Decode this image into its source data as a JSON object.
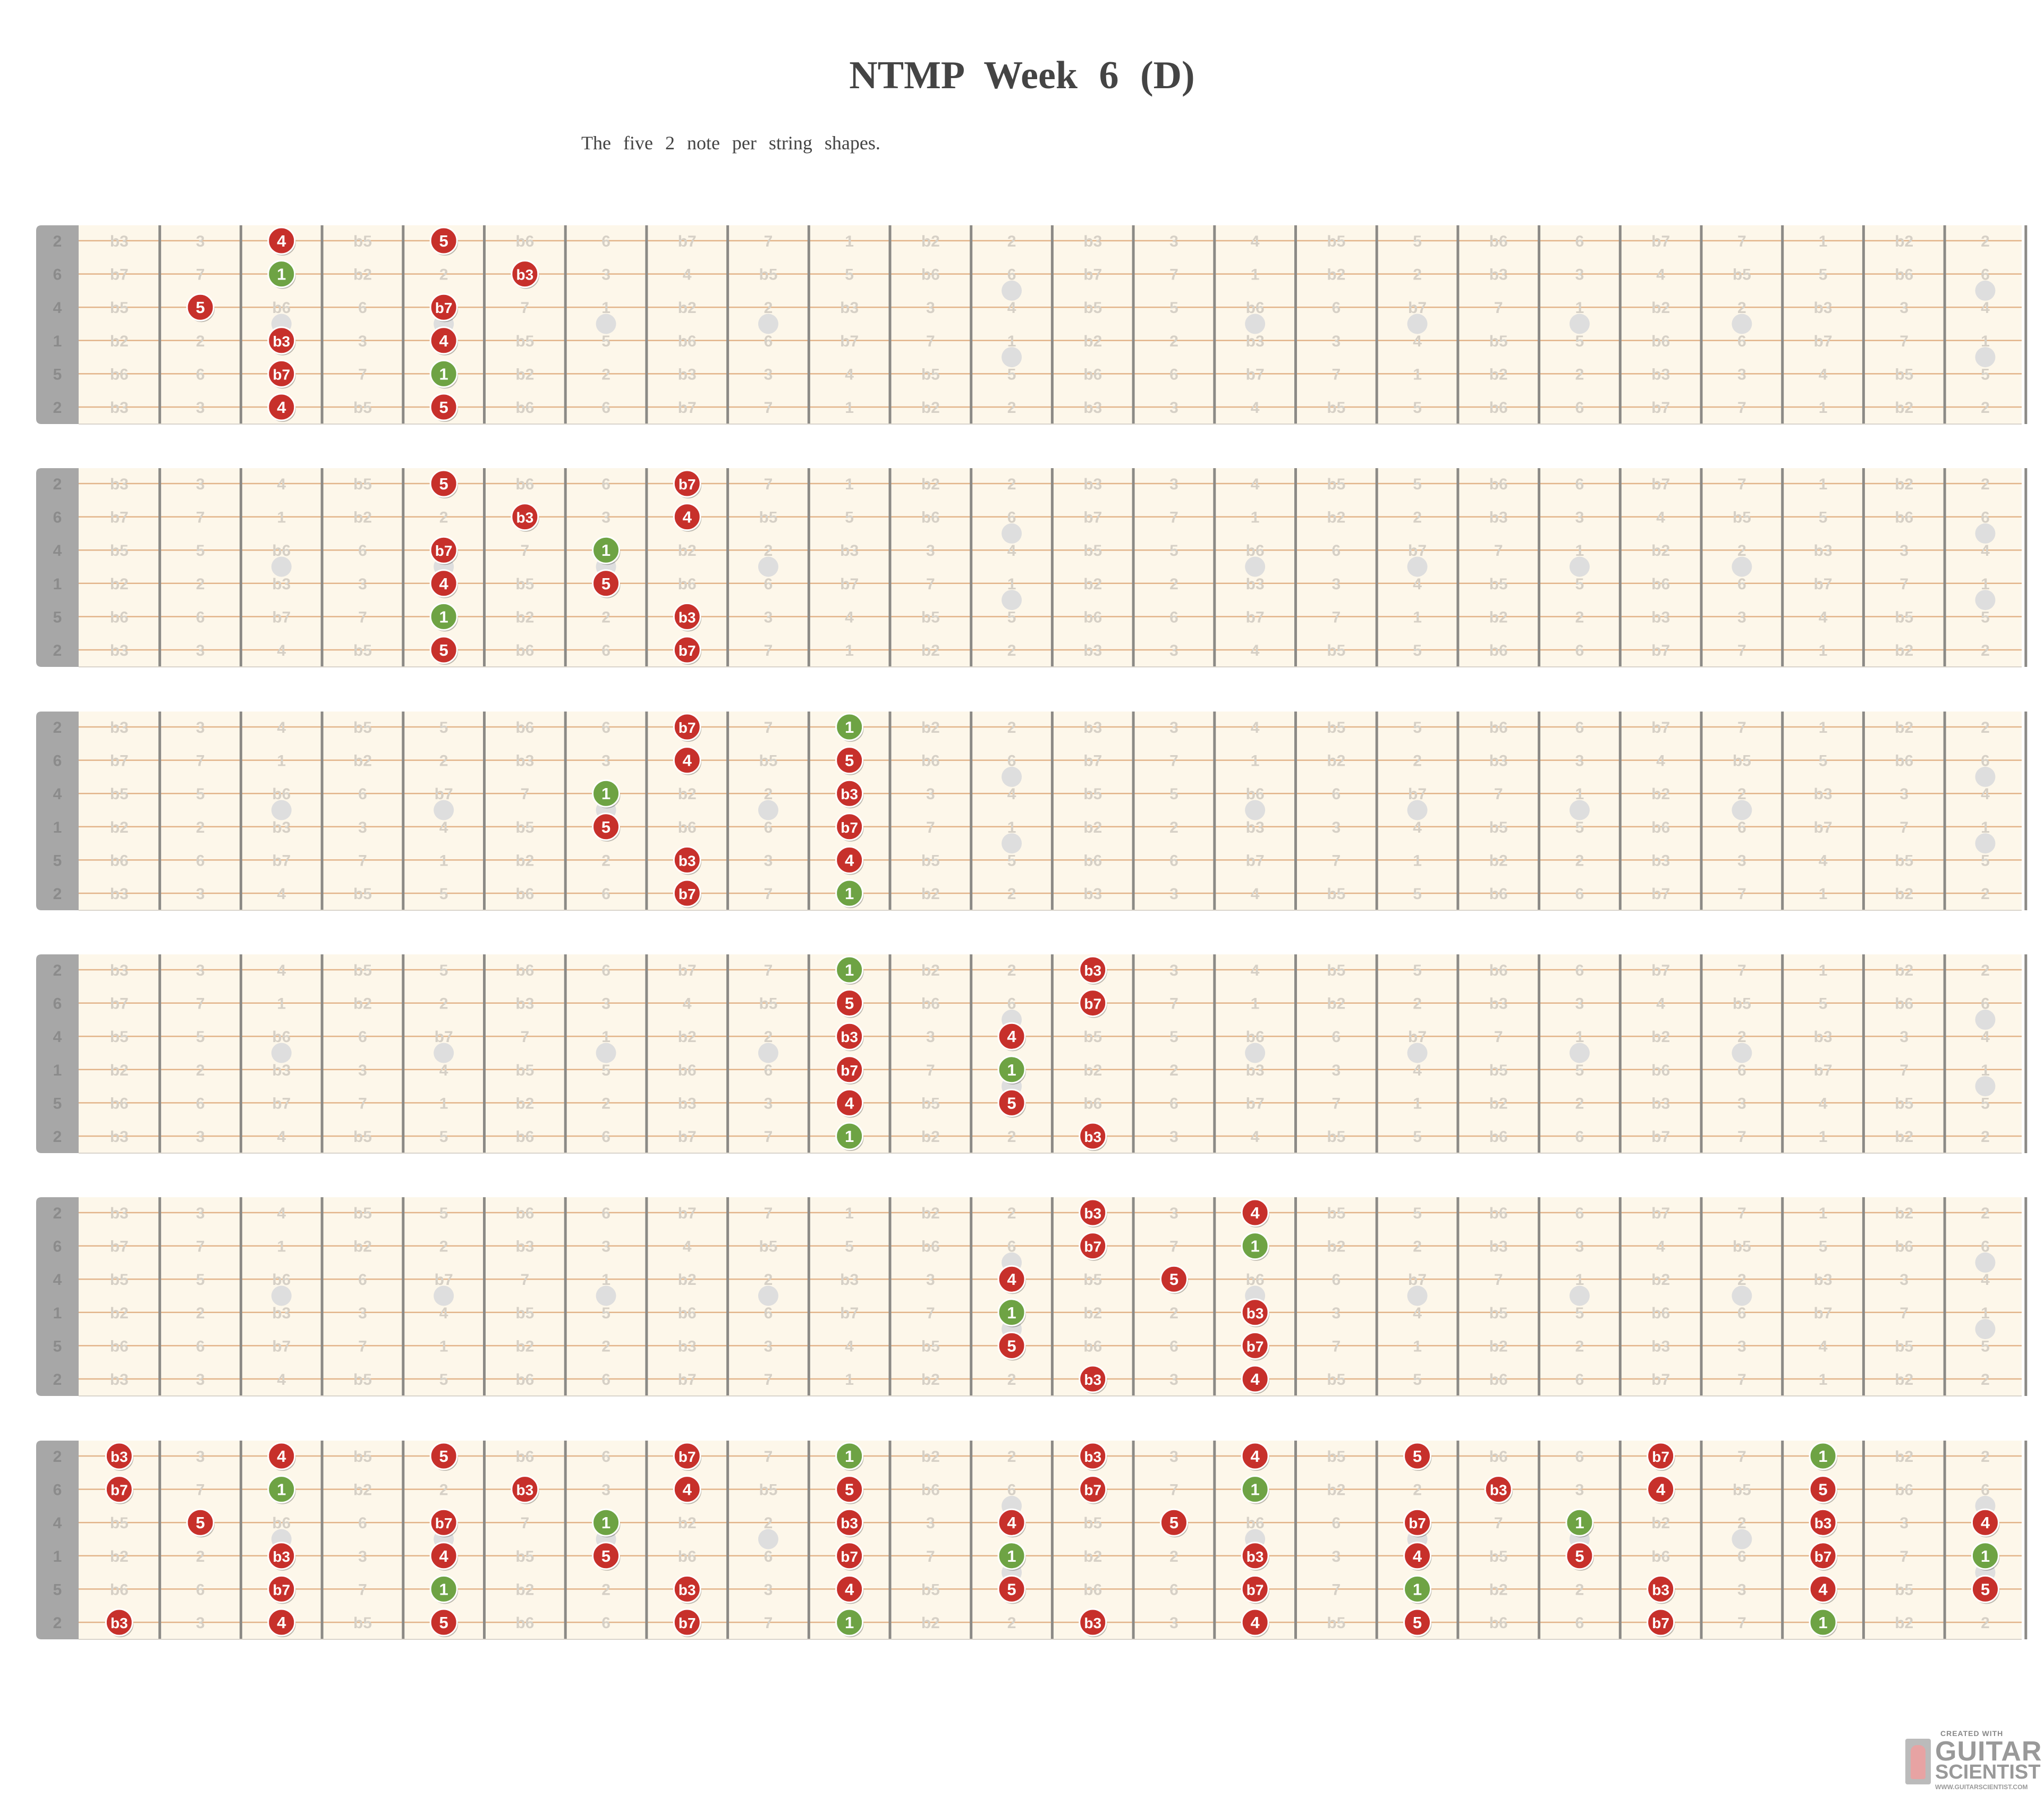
{
  "title": "NTMP   Week    6  (D)",
  "subtitle": "The  five  2  note   per  string    shapes.",
  "logo": {
    "created_with": "CREATED WITH",
    "line1": "GUITAR",
    "line2": "SCIENTIST",
    "url": "WWW.GUITARSCIENTIST.COM"
  },
  "colors": {
    "root": "#6ea344",
    "note": "#c7302b",
    "board_bg": "#fdf7ea",
    "string": "#e2b48a",
    "fret": "#8c8a86",
    "nut": "#a7a7a7",
    "ghost_label": "#d6d0c6",
    "open_label": "#8b8b8b",
    "inlay": "#dedede"
  },
  "fretboard": {
    "open_strings": [
      "2",
      "6",
      "4",
      "1",
      "5",
      "2"
    ],
    "fret_labels": [
      [
        "b3",
        "3",
        "4",
        "b5",
        "5",
        "b6",
        "6",
        "b7",
        "7",
        "1",
        "b2",
        "2",
        "b3",
        "3",
        "4",
        "b5",
        "5",
        "b6",
        "6",
        "b7",
        "7",
        "1",
        "b2",
        "2"
      ],
      [
        "b7",
        "7",
        "1",
        "b2",
        "2",
        "b3",
        "3",
        "4",
        "b5",
        "5",
        "b6",
        "6",
        "b7",
        "7",
        "1",
        "b2",
        "2",
        "b3",
        "3",
        "4",
        "b5",
        "5",
        "b6",
        "6"
      ],
      [
        "b5",
        "5",
        "b6",
        "6",
        "b7",
        "7",
        "1",
        "b2",
        "2",
        "b3",
        "3",
        "4",
        "b5",
        "5",
        "b6",
        "6",
        "b7",
        "7",
        "1",
        "b2",
        "2",
        "b3",
        "3",
        "4"
      ],
      [
        "b2",
        "2",
        "b3",
        "3",
        "4",
        "b5",
        "5",
        "b6",
        "6",
        "b7",
        "7",
        "1",
        "b2",
        "2",
        "b3",
        "3",
        "4",
        "b5",
        "5",
        "b6",
        "6",
        "b7",
        "7",
        "1"
      ],
      [
        "b6",
        "6",
        "b7",
        "7",
        "1",
        "b2",
        "2",
        "b3",
        "3",
        "4",
        "b5",
        "5",
        "b6",
        "6",
        "b7",
        "7",
        "1",
        "b2",
        "2",
        "b3",
        "3",
        "4",
        "b5",
        "5"
      ],
      [
        "b3",
        "3",
        "4",
        "b5",
        "5",
        "b6",
        "6",
        "b7",
        "7",
        "1",
        "b2",
        "2",
        "b3",
        "3",
        "4",
        "b5",
        "5",
        "b6",
        "6",
        "b7",
        "7",
        "1",
        "b2",
        "2"
      ]
    ],
    "single_dot_frets": [
      3,
      5,
      7,
      9,
      15,
      17,
      19,
      21
    ],
    "double_dot_frets": [
      12,
      24
    ]
  },
  "diagrams": [
    {
      "name": "shape-1",
      "notes": [
        {
          "s": 1,
          "f": 3,
          "l": "4"
        },
        {
          "s": 1,
          "f": 5,
          "l": "5"
        },
        {
          "s": 2,
          "f": 3,
          "l": "1"
        },
        {
          "s": 2,
          "f": 6,
          "l": "b3"
        },
        {
          "s": 3,
          "f": 2,
          "l": "5"
        },
        {
          "s": 3,
          "f": 5,
          "l": "b7"
        },
        {
          "s": 4,
          "f": 3,
          "l": "b3"
        },
        {
          "s": 4,
          "f": 5,
          "l": "4"
        },
        {
          "s": 5,
          "f": 3,
          "l": "b7"
        },
        {
          "s": 5,
          "f": 5,
          "l": "1"
        },
        {
          "s": 6,
          "f": 3,
          "l": "4"
        },
        {
          "s": 6,
          "f": 5,
          "l": "5"
        }
      ]
    },
    {
      "name": "shape-2",
      "notes": [
        {
          "s": 1,
          "f": 5,
          "l": "5"
        },
        {
          "s": 1,
          "f": 8,
          "l": "b7"
        },
        {
          "s": 2,
          "f": 6,
          "l": "b3"
        },
        {
          "s": 2,
          "f": 8,
          "l": "4"
        },
        {
          "s": 3,
          "f": 5,
          "l": "b7"
        },
        {
          "s": 3,
          "f": 7,
          "l": "1"
        },
        {
          "s": 4,
          "f": 5,
          "l": "4"
        },
        {
          "s": 4,
          "f": 7,
          "l": "5"
        },
        {
          "s": 5,
          "f": 5,
          "l": "1"
        },
        {
          "s": 5,
          "f": 8,
          "l": "b3"
        },
        {
          "s": 6,
          "f": 5,
          "l": "5"
        },
        {
          "s": 6,
          "f": 8,
          "l": "b7"
        }
      ]
    },
    {
      "name": "shape-3",
      "notes": [
        {
          "s": 1,
          "f": 8,
          "l": "b7"
        },
        {
          "s": 1,
          "f": 10,
          "l": "1"
        },
        {
          "s": 2,
          "f": 8,
          "l": "4"
        },
        {
          "s": 2,
          "f": 10,
          "l": "5"
        },
        {
          "s": 3,
          "f": 7,
          "l": "1"
        },
        {
          "s": 3,
          "f": 10,
          "l": "b3"
        },
        {
          "s": 4,
          "f": 7,
          "l": "5"
        },
        {
          "s": 4,
          "f": 10,
          "l": "b7"
        },
        {
          "s": 5,
          "f": 8,
          "l": "b3"
        },
        {
          "s": 5,
          "f": 10,
          "l": "4"
        },
        {
          "s": 6,
          "f": 8,
          "l": "b7"
        },
        {
          "s": 6,
          "f": 10,
          "l": "1"
        }
      ]
    },
    {
      "name": "shape-4",
      "notes": [
        {
          "s": 1,
          "f": 10,
          "l": "1"
        },
        {
          "s": 1,
          "f": 13,
          "l": "b3"
        },
        {
          "s": 2,
          "f": 10,
          "l": "5"
        },
        {
          "s": 2,
          "f": 13,
          "l": "b7"
        },
        {
          "s": 3,
          "f": 10,
          "l": "b3"
        },
        {
          "s": 3,
          "f": 12,
          "l": "4"
        },
        {
          "s": 4,
          "f": 10,
          "l": "b7"
        },
        {
          "s": 4,
          "f": 12,
          "l": "1"
        },
        {
          "s": 5,
          "f": 10,
          "l": "4"
        },
        {
          "s": 5,
          "f": 12,
          "l": "5"
        },
        {
          "s": 6,
          "f": 10,
          "l": "1"
        },
        {
          "s": 6,
          "f": 13,
          "l": "b3"
        }
      ]
    },
    {
      "name": "shape-5",
      "notes": [
        {
          "s": 1,
          "f": 13,
          "l": "b3"
        },
        {
          "s": 1,
          "f": 15,
          "l": "4"
        },
        {
          "s": 2,
          "f": 13,
          "l": "b7"
        },
        {
          "s": 2,
          "f": 15,
          "l": "1"
        },
        {
          "s": 3,
          "f": 12,
          "l": "4"
        },
        {
          "s": 3,
          "f": 14,
          "l": "5"
        },
        {
          "s": 4,
          "f": 12,
          "l": "1"
        },
        {
          "s": 4,
          "f": 15,
          "l": "b3"
        },
        {
          "s": 5,
          "f": 12,
          "l": "5"
        },
        {
          "s": 5,
          "f": 15,
          "l": "b7"
        },
        {
          "s": 6,
          "f": 13,
          "l": "b3"
        },
        {
          "s": 6,
          "f": 15,
          "l": "4"
        }
      ]
    },
    {
      "name": "all-shapes",
      "notes": [
        {
          "s": 1,
          "f": 1,
          "l": "b3"
        },
        {
          "s": 1,
          "f": 3,
          "l": "4"
        },
        {
          "s": 1,
          "f": 5,
          "l": "5"
        },
        {
          "s": 1,
          "f": 8,
          "l": "b7"
        },
        {
          "s": 1,
          "f": 10,
          "l": "1"
        },
        {
          "s": 1,
          "f": 13,
          "l": "b3"
        },
        {
          "s": 1,
          "f": 15,
          "l": "4"
        },
        {
          "s": 1,
          "f": 17,
          "l": "5"
        },
        {
          "s": 1,
          "f": 20,
          "l": "b7"
        },
        {
          "s": 1,
          "f": 22,
          "l": "1"
        },
        {
          "s": 2,
          "f": 1,
          "l": "b7"
        },
        {
          "s": 2,
          "f": 3,
          "l": "1"
        },
        {
          "s": 2,
          "f": 6,
          "l": "b3"
        },
        {
          "s": 2,
          "f": 8,
          "l": "4"
        },
        {
          "s": 2,
          "f": 10,
          "l": "5"
        },
        {
          "s": 2,
          "f": 13,
          "l": "b7"
        },
        {
          "s": 2,
          "f": 15,
          "l": "1"
        },
        {
          "s": 2,
          "f": 18,
          "l": "b3"
        },
        {
          "s": 2,
          "f": 20,
          "l": "4"
        },
        {
          "s": 2,
          "f": 22,
          "l": "5"
        },
        {
          "s": 3,
          "f": 2,
          "l": "5"
        },
        {
          "s": 3,
          "f": 5,
          "l": "b7"
        },
        {
          "s": 3,
          "f": 7,
          "l": "1"
        },
        {
          "s": 3,
          "f": 10,
          "l": "b3"
        },
        {
          "s": 3,
          "f": 12,
          "l": "4"
        },
        {
          "s": 3,
          "f": 14,
          "l": "5"
        },
        {
          "s": 3,
          "f": 17,
          "l": "b7"
        },
        {
          "s": 3,
          "f": 19,
          "l": "1"
        },
        {
          "s": 3,
          "f": 22,
          "l": "b3"
        },
        {
          "s": 3,
          "f": 24,
          "l": "4"
        },
        {
          "s": 4,
          "f": 3,
          "l": "b3"
        },
        {
          "s": 4,
          "f": 5,
          "l": "4"
        },
        {
          "s": 4,
          "f": 7,
          "l": "5"
        },
        {
          "s": 4,
          "f": 10,
          "l": "b7"
        },
        {
          "s": 4,
          "f": 12,
          "l": "1"
        },
        {
          "s": 4,
          "f": 15,
          "l": "b3"
        },
        {
          "s": 4,
          "f": 17,
          "l": "4"
        },
        {
          "s": 4,
          "f": 19,
          "l": "5"
        },
        {
          "s": 4,
          "f": 22,
          "l": "b7"
        },
        {
          "s": 4,
          "f": 24,
          "l": "1"
        },
        {
          "s": 5,
          "f": 3,
          "l": "b7"
        },
        {
          "s": 5,
          "f": 5,
          "l": "1"
        },
        {
          "s": 5,
          "f": 8,
          "l": "b3"
        },
        {
          "s": 5,
          "f": 10,
          "l": "4"
        },
        {
          "s": 5,
          "f": 12,
          "l": "5"
        },
        {
          "s": 5,
          "f": 15,
          "l": "b7"
        },
        {
          "s": 5,
          "f": 17,
          "l": "1"
        },
        {
          "s": 5,
          "f": 20,
          "l": "b3"
        },
        {
          "s": 5,
          "f": 22,
          "l": "4"
        },
        {
          "s": 5,
          "f": 24,
          "l": "5"
        },
        {
          "s": 6,
          "f": 1,
          "l": "b3"
        },
        {
          "s": 6,
          "f": 3,
          "l": "4"
        },
        {
          "s": 6,
          "f": 5,
          "l": "5"
        },
        {
          "s": 6,
          "f": 8,
          "l": "b7"
        },
        {
          "s": 6,
          "f": 10,
          "l": "1"
        },
        {
          "s": 6,
          "f": 13,
          "l": "b3"
        },
        {
          "s": 6,
          "f": 15,
          "l": "4"
        },
        {
          "s": 6,
          "f": 17,
          "l": "5"
        },
        {
          "s": 6,
          "f": 20,
          "l": "b7"
        },
        {
          "s": 6,
          "f": 22,
          "l": "1"
        }
      ]
    }
  ]
}
